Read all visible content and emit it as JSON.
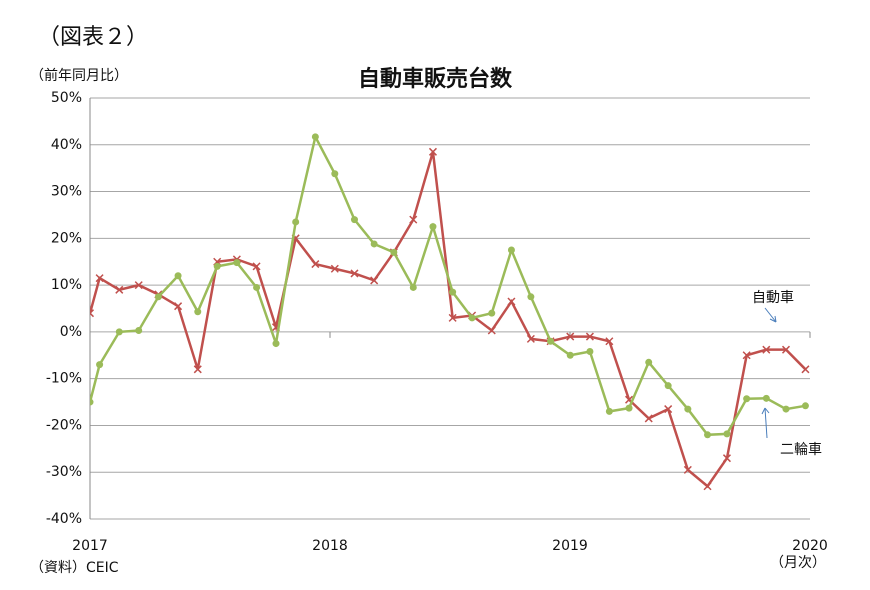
{
  "chart_data": {
    "type": "line",
    "figure_label": "（図表２）",
    "title": "自動車販売台数",
    "y_label": "（前年同月比）",
    "source": "（資料）CEIC",
    "x_unit": "（月次）",
    "x": [
      2017,
      2017.04,
      2017.122,
      2017.203,
      2017.285,
      2017.367,
      2017.449,
      2017.53,
      2017.612,
      2017.694,
      2017.775,
      2017.857,
      2017.939,
      2018.02,
      2018.102,
      2018.184,
      2018.266,
      2018.347,
      2018.429,
      2018.511,
      2018.592,
      2018.674,
      2018.756,
      2018.837,
      2018.919,
      2019.001,
      2019.083,
      2019.164,
      2019.246,
      2019.328,
      2019.409,
      2019.491,
      2019.573,
      2019.654,
      2019.736,
      2019.818,
      2019.9,
      2019.981
    ],
    "series": [
      {
        "name": "自動車",
        "color": "#c0504d",
        "marker": "x",
        "values": [
          4,
          11.5,
          9,
          10,
          8,
          5.5,
          -8,
          15,
          15.5,
          14,
          1,
          20,
          14.5,
          13.5,
          12.5,
          11,
          17,
          24,
          38.5,
          3,
          3.5,
          0.3,
          6.5,
          -1.5,
          -2,
          -1,
          -1,
          -2,
          -14.5,
          -18.5,
          -16.5,
          -29.5,
          -33,
          -27,
          -5,
          -3.8,
          -3.8,
          -8
        ]
      },
      {
        "name": "二輪車",
        "color": "#9bbb59",
        "marker": "circle",
        "values": [
          -15,
          -7,
          0,
          0.3,
          7.5,
          12,
          4.3,
          14,
          14.8,
          9.5,
          -2.5,
          23.5,
          41.7,
          33.8,
          24,
          18.8,
          17,
          9.5,
          22.5,
          8.5,
          3,
          4,
          17.5,
          7.5,
          -2,
          -5,
          -4.2,
          -17,
          -16.3,
          -6.5,
          -11.5,
          -16.5,
          -22,
          -21.8,
          -14.3,
          -14.2,
          -16.5,
          -15.8
        ]
      }
    ],
    "xlim": [
      2017,
      2020
    ],
    "xticks": [
      2017,
      2018,
      2019,
      2020
    ],
    "ylim": [
      -40,
      50
    ],
    "yticks": [
      {
        "value": -40,
        "label": "-40%"
      },
      {
        "value": -30,
        "label": "-30%"
      },
      {
        "value": -20,
        "label": "-20%"
      },
      {
        "value": -10,
        "label": "-10%"
      },
      {
        "value": 0,
        "label": "0%"
      },
      {
        "value": 10,
        "label": "10%"
      },
      {
        "value": 20,
        "label": "20%"
      },
      {
        "value": 30,
        "label": "30%"
      },
      {
        "value": 40,
        "label": "40%"
      },
      {
        "value": 50,
        "label": "50%"
      }
    ],
    "grid": true
  }
}
